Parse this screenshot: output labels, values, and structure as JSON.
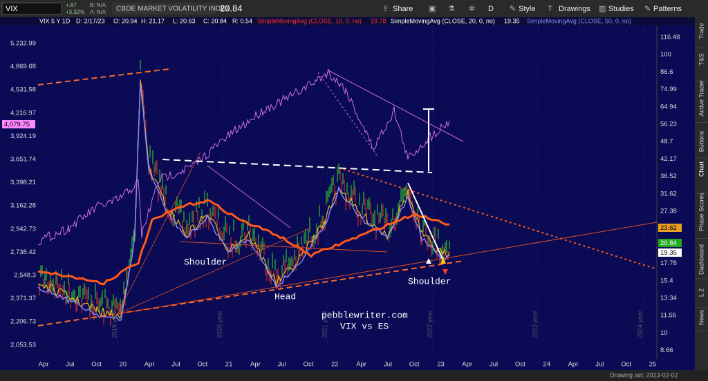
{
  "toolbar": {
    "symbol": "VIX",
    "change": "+.67",
    "change_pct": "+3.32%",
    "bid": "B: N/A",
    "ask": "A: N/A",
    "name": "CBOE MARKET VOLATILITY INDEX",
    "last": "20.84",
    "buttons": [
      "Share",
      "D",
      "Style",
      "Drawings",
      "Studies",
      "Patterns"
    ]
  },
  "info_bar": {
    "symbol": "VIX 5 Y 1D",
    "date": "D: 2/17/23",
    "open": "O: 20.94",
    "high": "H: 21.17",
    "low": "L: 20.63",
    "close": "C: 20.84",
    "range": "R: 0.54",
    "studies": [
      {
        "label": "SimpleMovingAvg (CLOSE, 10, 0, no)",
        "value": "19.78"
      },
      {
        "label": "SimpleMovingAvg (CLOSE, 20, 0, no)",
        "value": "19.35"
      },
      {
        "label": "SimpleMovingAvg (CLOSE, 50, 0, no)"
      }
    ]
  },
  "left_axis": {
    "labels": [
      "5,232.99",
      "4,869.68",
      "4,531.58",
      "4,216.97",
      "3,924.19",
      "3,651.74",
      "3,398.21",
      "3,162.28",
      "2,942.73",
      "2,738.42",
      "2,548.3",
      "2,371.37",
      "2,206.73",
      "2,053.53"
    ],
    "current": "4,079.75"
  },
  "right_axis": {
    "labels": [
      "116.48",
      "100",
      "86.6",
      "74.99",
      "64.94",
      "56.23",
      "48.7",
      "42.17",
      "36.52",
      "31.62",
      "27.38",
      "17.78",
      "15.4",
      "13.34",
      "11.55",
      "10",
      "8.66"
    ],
    "markers": [
      "23.62",
      "20.84",
      "19.35"
    ]
  },
  "x_axis": {
    "labels": [
      "Apr",
      "Jul",
      "Oct",
      "20",
      "Apr",
      "Jul",
      "Oct",
      "21",
      "Apr",
      "Jul",
      "Oct",
      "22",
      "Apr",
      "Jul",
      "Oct",
      "23",
      "Apr",
      "Jul",
      "Oct",
      "24",
      "Apr",
      "Jul",
      "Oct",
      "25"
    ]
  },
  "year_labels": [
    "2019 year",
    "2020 year",
    "2021 year",
    "2022 year",
    "2023 year",
    "2024 year"
  ],
  "annotations": [
    "Shoulder",
    "Head",
    "Shoulder",
    "pebblewriter.com",
    "VIX vs ES"
  ],
  "side_tabs": [
    "Trade",
    "T&S",
    "Active Trader",
    "Buttons",
    "Chart",
    "Phase Scores",
    "Dashboard",
    "L 2",
    "News"
  ],
  "status": "Drawing set: 2023-02-02"
}
